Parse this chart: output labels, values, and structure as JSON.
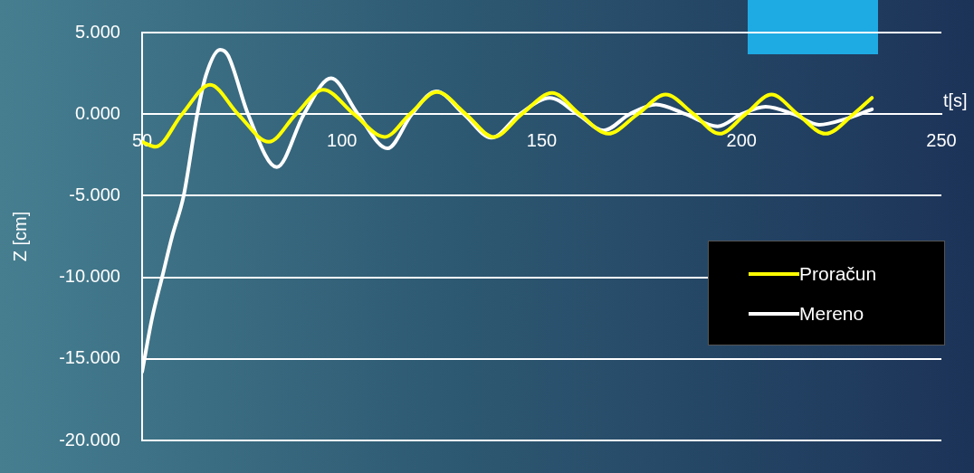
{
  "chart_data": {
    "type": "line",
    "xlabel": "t[s]",
    "ylabel": "Z [cm]",
    "xlim": [
      50,
      250
    ],
    "xticks": [
      50,
      100,
      150,
      200,
      250
    ],
    "ylim": [
      -20,
      5
    ],
    "yticks": [
      {
        "value": -20,
        "label": "-20.000"
      },
      {
        "value": -15,
        "label": "-15.000"
      },
      {
        "value": -10,
        "label": "-10.000"
      },
      {
        "value": -5,
        "label": "-5.000"
      },
      {
        "value": 0,
        "label": "0.000"
      },
      {
        "value": 5,
        "label": "5.000"
      }
    ],
    "grid": "y",
    "legend": "right",
    "marker": "none",
    "line_style": "solid",
    "series": [
      {
        "name": "Proračun",
        "color": "#ffff00",
        "x": [
          50,
          53.4,
          60,
          67,
          74,
          81.7,
          88.5,
          95.3,
          103,
          110.7,
          117,
          123.8,
          131,
          138,
          145,
          152.6,
          159.5,
          166.6,
          174,
          181,
          188,
          194.5,
          201,
          207.5,
          214,
          221,
          228,
          232.6
        ],
        "values": [
          -1.7,
          -2.0,
          0,
          1.8,
          0,
          -1.7,
          0,
          1.5,
          0,
          -1.4,
          0,
          1.35,
          0,
          -1.4,
          0,
          1.3,
          0,
          -1.2,
          0,
          1.2,
          0,
          -1.2,
          0,
          1.2,
          0,
          -1.2,
          0,
          1.0
        ]
      },
      {
        "name": "Mereno",
        "color": "#ffffff",
        "x": [
          50,
          52.5,
          55,
          57.5,
          60.4,
          63.8,
          66,
          69.5,
          71.5,
          76.5,
          83.7,
          90.5,
          97.3,
          104,
          111.4,
          117.5,
          123.6,
          130.5,
          137.4,
          144.5,
          152,
          159,
          165.5,
          172,
          178.6,
          186,
          194,
          200,
          206,
          213,
          219.4,
          226,
          232.6
        ],
        "values": [
          -15.8,
          -12.5,
          -10,
          -7.5,
          -5,
          0,
          2.4,
          3.95,
          3.6,
          0,
          -3.25,
          0,
          2.2,
          0,
          -2.1,
          0,
          1.4,
          0,
          -1.45,
          0,
          1.0,
          0,
          -1.0,
          0,
          0.6,
          0,
          -0.75,
          0,
          0.45,
          0,
          -0.65,
          -0.3,
          0.3
        ]
      }
    ]
  }
}
